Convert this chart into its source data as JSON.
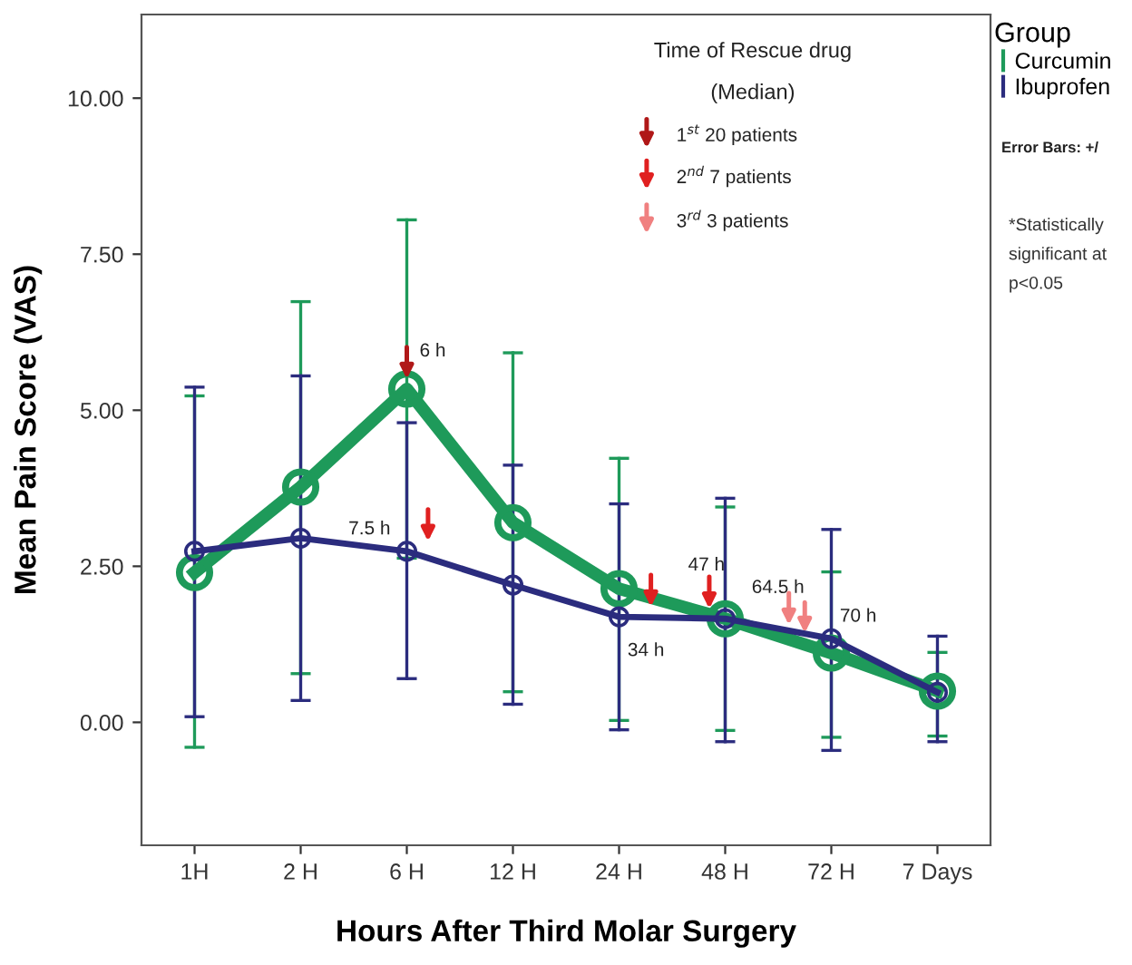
{
  "chart_data": {
    "type": "line",
    "xlabel": "Hours After Third Molar Surgery",
    "ylabel": "Mean Pain Score (VAS)",
    "legend_title": "Group",
    "categories": [
      "1H",
      "2 H",
      "6 H",
      "12 H",
      "24 H",
      "48 H",
      "72 H",
      "7 Days"
    ],
    "series": [
      {
        "name": "Curcumin",
        "color": "#1e9a5a",
        "values": [
          2.4,
          3.77,
          5.34,
          3.2,
          2.14,
          1.66,
          1.11,
          0.5
        ],
        "errors": [
          [
            -0.4,
            5.23
          ],
          [
            0.78,
            6.74
          ],
          [
            2.63,
            8.05
          ],
          [
            0.49,
            5.92
          ],
          [
            0.03,
            4.23
          ],
          [
            -0.13,
            3.45
          ],
          [
            -0.24,
            2.41
          ],
          [
            -0.22,
            1.12
          ]
        ]
      },
      {
        "name": "Ibuprofen",
        "color": "#2b2c7e",
        "values": [
          2.74,
          2.95,
          2.74,
          2.2,
          1.69,
          1.66,
          1.34,
          0.48
        ],
        "errors": [
          [
            0.09,
            5.37
          ],
          [
            0.35,
            5.55
          ],
          [
            0.7,
            4.8
          ],
          [
            0.29,
            4.12
          ],
          [
            -0.12,
            3.5
          ],
          [
            -0.31,
            3.59
          ],
          [
            -0.45,
            3.09
          ],
          [
            -0.31,
            1.38
          ]
        ]
      }
    ],
    "ylim": [
      -1.97,
      11.34
    ],
    "yticks": [
      {
        "value": 0,
        "label": "0.00"
      },
      {
        "value": 2.5,
        "label": "2.50"
      },
      {
        "value": 5,
        "label": "5.00"
      },
      {
        "value": 7.5,
        "label": "7.50"
      },
      {
        "value": 10,
        "label": "10.00"
      }
    ],
    "marker": "circle",
    "line_style": "solid",
    "grid": false,
    "legend": "top right",
    "annotations": [
      {
        "text": "6 h",
        "x": "6 H",
        "y": 5.34
      },
      {
        "text": "7.5 h",
        "x": "6 H",
        "y": 2.74
      },
      {
        "text": "34 h",
        "x": "24 H",
        "y": 1.69
      },
      {
        "text": "47 h",
        "x": "48 H",
        "y": 1.66
      },
      {
        "text": "64.5 h",
        "x": "72 H",
        "y": 1.4
      },
      {
        "text": "70 h",
        "x": "72 H",
        "y": 1.34
      },
      "Time of Rescue drug",
      "(Median)",
      "1$^{st}$ 20 patients",
      "2$^{nd}$ 7 patients",
      "3$^{rd}$ 3 patients",
      "Error Bars: +/",
      "*Statistically significant at p<0.05"
    ]
  }
}
